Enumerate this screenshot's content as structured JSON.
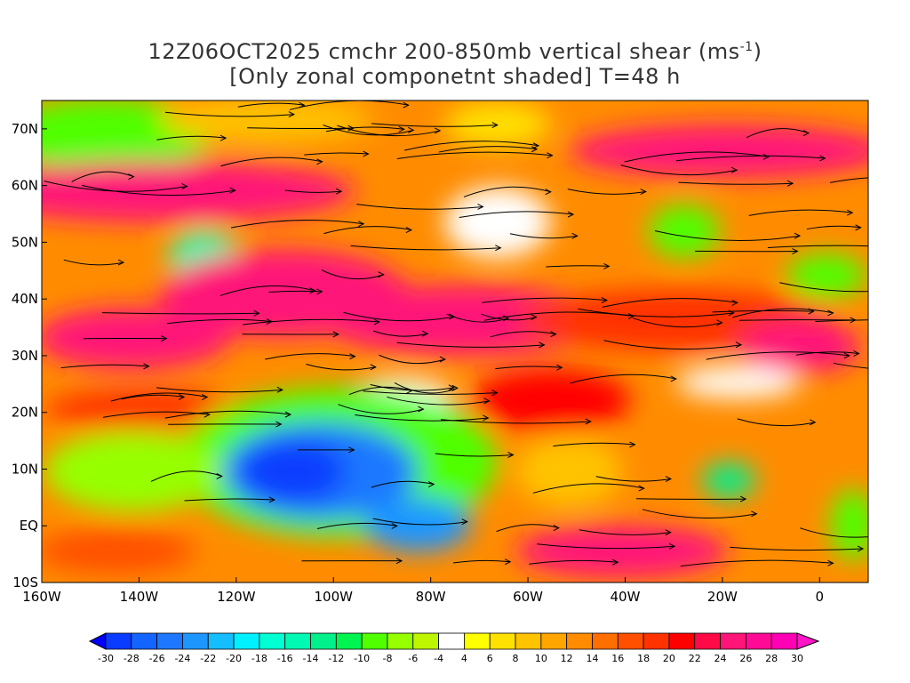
{
  "title": {
    "line1_main": "12Z06OCT2025 cmchr 200-850mb vertical shear (ms",
    "line1_sup": "-1",
    "line1_end": ")",
    "line2": "[Only zonal componetnt shaded] T=48 h"
  },
  "map": {
    "lon_range": [
      -160,
      10
    ],
    "lat_range": [
      -10,
      75
    ],
    "lon_ticks": [
      {
        "value": -160,
        "label": "160W"
      },
      {
        "value": -140,
        "label": "140W"
      },
      {
        "value": -120,
        "label": "120W"
      },
      {
        "value": -100,
        "label": "100W"
      },
      {
        "value": -80,
        "label": "80W"
      },
      {
        "value": -60,
        "label": "60W"
      },
      {
        "value": -40,
        "label": "40W"
      },
      {
        "value": -20,
        "label": "20W"
      },
      {
        "value": 0,
        "label": "0"
      }
    ],
    "lat_ticks": [
      {
        "value": -10,
        "label": "10S"
      },
      {
        "value": 0,
        "label": "EQ"
      },
      {
        "value": 10,
        "label": "10N"
      },
      {
        "value": 20,
        "label": "20N"
      },
      {
        "value": 30,
        "label": "30N"
      },
      {
        "value": 40,
        "label": "40N"
      },
      {
        "value": 50,
        "label": "50N"
      },
      {
        "value": 60,
        "label": "60N"
      },
      {
        "value": 70,
        "label": "70N"
      }
    ]
  },
  "colorbar": {
    "labels": [
      "-30",
      "-28",
      "-26",
      "-24",
      "-22",
      "-20",
      "-18",
      "-16",
      "-14",
      "-12",
      "-10",
      "-8",
      "-6",
      "-4",
      "4",
      "6",
      "8",
      "10",
      "12",
      "14",
      "16",
      "18",
      "20",
      "22",
      "24",
      "26",
      "28",
      "30"
    ],
    "colors": [
      "#0000ff",
      "#0a3cff",
      "#1464ff",
      "#1e78ff",
      "#1e96ff",
      "#14beff",
      "#00f0ff",
      "#00ffd2",
      "#00fab4",
      "#00f08c",
      "#00f550",
      "#50ff00",
      "#96ff00",
      "#bef500",
      "#ffffff",
      "#ffff00",
      "#ffe100",
      "#ffc300",
      "#ffa500",
      "#ff8c00",
      "#ff6e00",
      "#ff5000",
      "#ff3200",
      "#ff0000",
      "#ff0a46",
      "#ff1478",
      "#ff0a96",
      "#ff00b4",
      "#ff14c8"
    ]
  }
}
